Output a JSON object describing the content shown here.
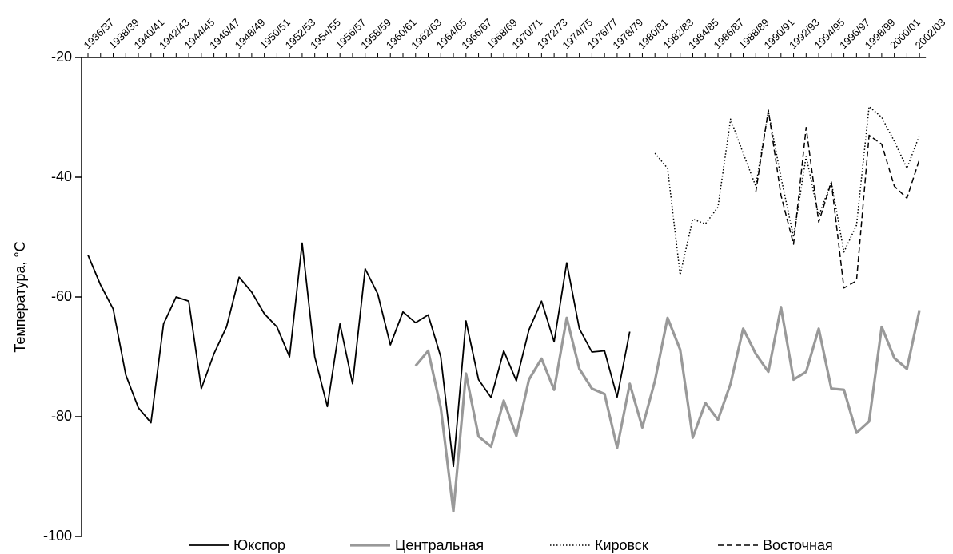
{
  "chart_data": {
    "type": "line",
    "y_label": "Температура, °C",
    "categories": [
      "1936/37",
      null,
      "1938/39",
      null,
      "1940/41",
      null,
      "1942/43",
      null,
      "1944/45",
      null,
      "1946/47",
      null,
      "1948/49",
      null,
      "1950/51",
      null,
      "1952/53",
      null,
      "1954/55",
      null,
      "1956/57",
      null,
      "1958/59",
      null,
      "1960/61",
      null,
      "1962/63",
      null,
      "1964/65",
      null,
      "1966/67",
      null,
      "1968/69",
      null,
      "1970/71",
      null,
      "1972/73",
      null,
      "1974/75",
      null,
      "1976/77",
      null,
      "1978/79",
      null,
      "1980/81",
      null,
      "1982/83",
      null,
      "1984/85",
      null,
      "1986/87",
      null,
      "1988/89",
      null,
      "1990/91",
      null,
      "1992/93",
      null,
      "1994/95",
      null,
      "1996/97",
      null,
      "1998/99",
      null,
      "2000/01",
      null,
      "2002/03"
    ],
    "ylim": [
      -100,
      -20
    ],
    "yticks": [
      -100,
      -80,
      -60,
      -40,
      -20
    ],
    "series": [
      {
        "name": "Юкспор",
        "color": "#000000",
        "style": "solid",
        "values": [
          -53,
          -58,
          -62,
          -73,
          -78.5,
          -81,
          -64.5,
          -60,
          -60.7,
          -75.3,
          -69.5,
          -65,
          -56.7,
          -59.2,
          -62.8,
          -65,
          -70,
          -51,
          -70,
          -78.3,
          -64.5,
          -74.5,
          -55.3,
          -59.5,
          -68,
          -62.5,
          -64.3,
          -63,
          -70,
          -88.3,
          -64,
          -73.8,
          -76.8,
          -69,
          -74,
          -65.5,
          -60.7,
          -67.5,
          -54.3,
          -65.3,
          -69.2,
          -69,
          -76.7,
          -65.8,
          null,
          null,
          null,
          null,
          null,
          null,
          null,
          null,
          null,
          null,
          null,
          null,
          null,
          null,
          null,
          null,
          null,
          null,
          null,
          null,
          null,
          null,
          null
        ]
      },
      {
        "name": "Центральная",
        "color": "#999999",
        "style": "thick",
        "values": [
          null,
          null,
          null,
          null,
          null,
          null,
          null,
          null,
          null,
          null,
          null,
          null,
          null,
          null,
          null,
          null,
          null,
          null,
          null,
          null,
          null,
          null,
          null,
          null,
          null,
          null,
          -71.5,
          -69,
          -78.5,
          -95.8,
          -72.8,
          -83.3,
          -85,
          -77.3,
          -83.2,
          -73.8,
          -70.3,
          -75.5,
          -63.5,
          -72,
          -75.3,
          -76.2,
          -85.2,
          -74.5,
          -81.8,
          -74,
          -63.5,
          -68.8,
          -83.5,
          -77.7,
          -80.5,
          -74.5,
          -65.3,
          -69.5,
          -72.5,
          -61.7,
          -73.8,
          -72.5,
          -65.3,
          -75.3,
          -75.5,
          -82.7,
          -80.8,
          -65,
          -70.2,
          -72,
          -62.2
        ]
      },
      {
        "name": "Кировск",
        "color": "#000000",
        "style": "dotted",
        "values": [
          null,
          null,
          null,
          null,
          null,
          null,
          null,
          null,
          null,
          null,
          null,
          null,
          null,
          null,
          null,
          null,
          null,
          null,
          null,
          null,
          null,
          null,
          null,
          null,
          null,
          null,
          null,
          null,
          null,
          null,
          null,
          null,
          null,
          null,
          null,
          null,
          null,
          null,
          null,
          null,
          null,
          null,
          null,
          null,
          null,
          -36,
          -38.5,
          -56.3,
          -47,
          -47.8,
          -45,
          -30.3,
          -36,
          -41.5,
          -29,
          -40,
          -50,
          -36.5,
          -46.5,
          -40.8,
          -52.5,
          -48,
          -28.2,
          -30,
          -34,
          -38.5,
          -33
        ]
      },
      {
        "name": "Восточная",
        "color": "#000000",
        "style": "dashed",
        "values": [
          null,
          null,
          null,
          null,
          null,
          null,
          null,
          null,
          null,
          null,
          null,
          null,
          null,
          null,
          null,
          null,
          null,
          null,
          null,
          null,
          null,
          null,
          null,
          null,
          null,
          null,
          null,
          null,
          null,
          null,
          null,
          null,
          null,
          null,
          null,
          null,
          null,
          null,
          null,
          null,
          null,
          null,
          null,
          null,
          null,
          null,
          null,
          null,
          null,
          null,
          null,
          null,
          null,
          -42.5,
          -28.8,
          -43,
          -51.2,
          -31.7,
          -47.5,
          -40.8,
          -58.5,
          -57.3,
          -33,
          -34.5,
          -41.5,
          -43.5,
          -37
        ]
      }
    ]
  }
}
